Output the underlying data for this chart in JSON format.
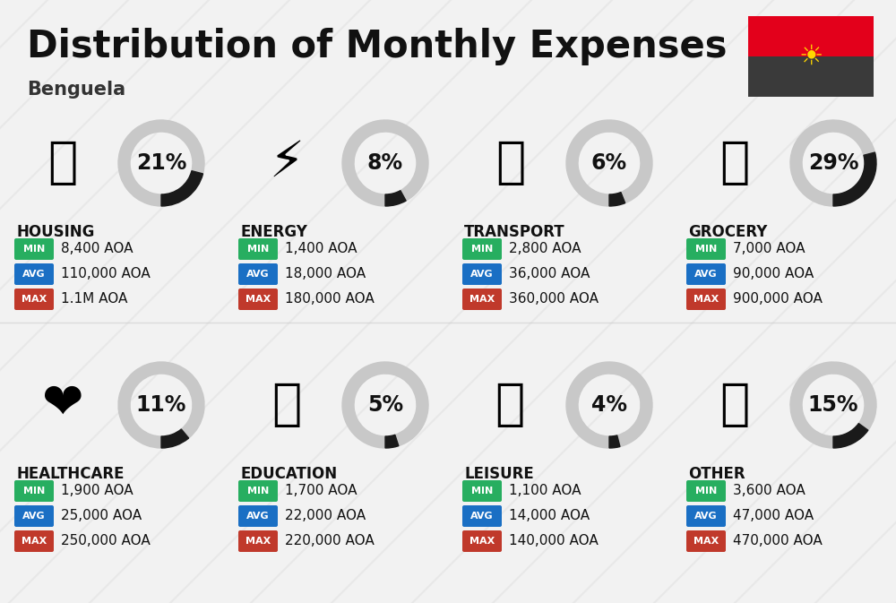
{
  "title": "Distribution of Monthly Expenses",
  "subtitle": "Benguela",
  "background_color": "#f2f2f2",
  "categories": [
    {
      "name": "HOUSING",
      "percent": 21,
      "min": "8,400 AOA",
      "avg": "110,000 AOA",
      "max": "1.1M AOA",
      "row": 0,
      "col": 0
    },
    {
      "name": "ENERGY",
      "percent": 8,
      "min": "1,400 AOA",
      "avg": "18,000 AOA",
      "max": "180,000 AOA",
      "row": 0,
      "col": 1
    },
    {
      "name": "TRANSPORT",
      "percent": 6,
      "min": "2,800 AOA",
      "avg": "36,000 AOA",
      "max": "360,000 AOA",
      "row": 0,
      "col": 2
    },
    {
      "name": "GROCERY",
      "percent": 29,
      "min": "7,000 AOA",
      "avg": "90,000 AOA",
      "max": "900,000 AOA",
      "row": 0,
      "col": 3
    },
    {
      "name": "HEALTHCARE",
      "percent": 11,
      "min": "1,900 AOA",
      "avg": "25,000 AOA",
      "max": "250,000 AOA",
      "row": 1,
      "col": 0
    },
    {
      "name": "EDUCATION",
      "percent": 5,
      "min": "1,700 AOA",
      "avg": "22,000 AOA",
      "max": "220,000 AOA",
      "row": 1,
      "col": 1
    },
    {
      "name": "LEISURE",
      "percent": 4,
      "min": "1,100 AOA",
      "avg": "14,000 AOA",
      "max": "140,000 AOA",
      "row": 1,
      "col": 2
    },
    {
      "name": "OTHER",
      "percent": 15,
      "min": "3,600 AOA",
      "avg": "47,000 AOA",
      "max": "470,000 AOA",
      "row": 1,
      "col": 3
    }
  ],
  "color_min": "#27ae60",
  "color_avg": "#1a6fc4",
  "color_max": "#c0392b",
  "arc_color_filled": "#1a1a1a",
  "arc_color_empty": "#c8c8c8",
  "title_fontsize": 30,
  "subtitle_fontsize": 15,
  "category_fontsize": 12,
  "percent_fontsize": 17,
  "value_fontsize": 11,
  "badge_label_fontsize": 8
}
